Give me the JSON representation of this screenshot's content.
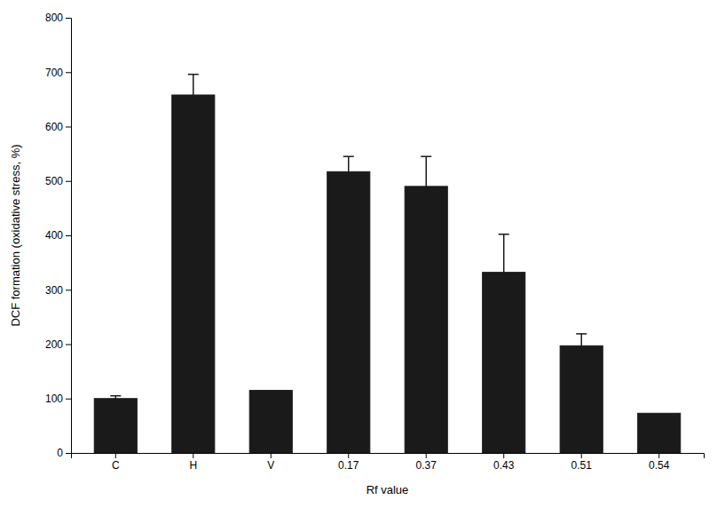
{
  "chart_data": {
    "type": "bar",
    "categories": [
      "C",
      "H",
      "V",
      "0.17",
      "0.37",
      "0.43",
      "0.51",
      "0.54"
    ],
    "values": [
      100,
      658,
      115,
      517,
      490,
      332,
      197,
      73
    ],
    "errors": [
      5,
      38,
      0,
      28,
      55,
      70,
      22,
      0
    ],
    "color": "#1a1a1a",
    "xlabel": "Rf value",
    "ylabel": "DCF formation (oxidative stress, %)",
    "ylim": [
      0,
      800
    ],
    "yticks": [
      0,
      100,
      200,
      300,
      400,
      500,
      600,
      700,
      800
    ],
    "grid": false
  }
}
